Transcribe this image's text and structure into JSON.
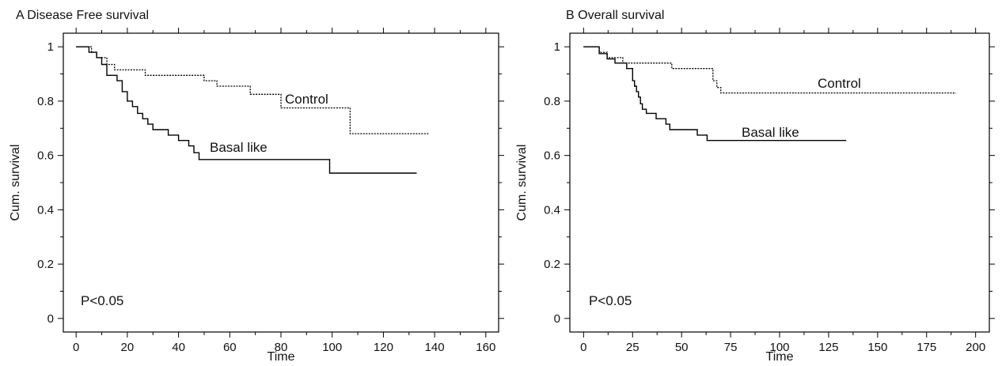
{
  "chart_data": [
    {
      "type": "line",
      "title": "A Disease Free survival",
      "xlabel": "Time",
      "ylabel": "Cum. survival",
      "xlim": [
        -5,
        165
      ],
      "ylim": [
        -0.05,
        1.05
      ],
      "xticks": [
        0,
        20,
        40,
        60,
        80,
        100,
        120,
        140,
        160
      ],
      "yticks": [
        0,
        0.2,
        0.4,
        0.6,
        0.8,
        1
      ],
      "xtick_labels": [
        "0",
        "20",
        "40",
        "60",
        "80",
        "100",
        "120",
        "140",
        "160"
      ],
      "ytick_labels": [
        "0",
        "0.2",
        "0.4",
        "0.6",
        "0.8",
        "1"
      ],
      "annotation": "P<0.05",
      "series": [
        {
          "name": "Control",
          "style": "dotted",
          "x": [
            0,
            6,
            8,
            12,
            15,
            27,
            50,
            55,
            68,
            80,
            107,
            138
          ],
          "y": [
            1,
            0.98,
            0.96,
            0.935,
            0.915,
            0.895,
            0.875,
            0.855,
            0.825,
            0.775,
            0.68,
            0.68
          ]
        },
        {
          "name": "Basal like",
          "style": "solid",
          "x": [
            0,
            5,
            8,
            10,
            12,
            16,
            18,
            20,
            22,
            24,
            26,
            28,
            30,
            36,
            40,
            44,
            46,
            48,
            99,
            133
          ],
          "y": [
            1,
            0.98,
            0.96,
            0.935,
            0.895,
            0.875,
            0.835,
            0.8,
            0.78,
            0.755,
            0.735,
            0.715,
            0.695,
            0.675,
            0.655,
            0.635,
            0.61,
            0.585,
            0.535,
            0.535
          ]
        }
      ]
    },
    {
      "type": "line",
      "title": "B Overall survival",
      "xlabel": "Time",
      "ylabel": "Cum. survival",
      "xlim": [
        -7,
        207
      ],
      "ylim": [
        -0.05,
        1.05
      ],
      "xticks": [
        0,
        25,
        50,
        75,
        100,
        125,
        150,
        175,
        200
      ],
      "yticks": [
        0,
        0.2,
        0.4,
        0.6,
        0.8,
        1
      ],
      "xtick_labels": [
        "0",
        "25",
        "50",
        "75",
        "100",
        "125",
        "150",
        "175",
        "200"
      ],
      "ytick_labels": [
        "0",
        "0.2",
        "0.4",
        "0.6",
        "0.8",
        "1"
      ],
      "annotation": "P<0.05",
      "series": [
        {
          "name": "Control",
          "style": "dotted",
          "x": [
            0,
            8,
            12,
            20,
            45,
            66,
            68,
            70,
            190
          ],
          "y": [
            1,
            0.98,
            0.96,
            0.94,
            0.92,
            0.875,
            0.85,
            0.83,
            0.83
          ]
        },
        {
          "name": "Basal like",
          "style": "solid",
          "x": [
            0,
            8,
            12,
            16,
            22,
            25,
            26,
            27,
            28,
            29,
            30,
            32,
            37,
            42,
            44,
            46,
            58,
            63,
            134
          ],
          "y": [
            1,
            0.975,
            0.955,
            0.94,
            0.92,
            0.875,
            0.855,
            0.835,
            0.815,
            0.79,
            0.77,
            0.755,
            0.735,
            0.715,
            0.695,
            0.695,
            0.675,
            0.655,
            0.655
          ]
        }
      ]
    }
  ]
}
